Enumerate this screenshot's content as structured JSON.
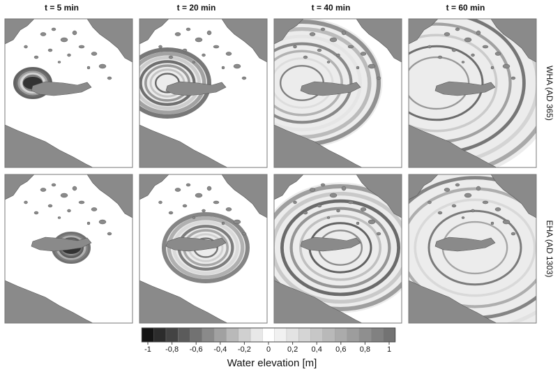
{
  "columns": [
    "t = 5 min",
    "t = 20 min",
    "t = 40 min",
    "t = 60 min"
  ],
  "rows": [
    "WHA (AD 365)",
    "EHA (AD 1303)"
  ],
  "colorbar": {
    "label": "Water elevation [m]",
    "lim": [
      -1,
      1
    ],
    "ticks": [
      -1,
      {
        "value": -0.8,
        "label": "-0,8"
      },
      {
        "value": -0.6,
        "label": "-0,6"
      },
      {
        "value": -0.4,
        "label": "-0,4"
      },
      {
        "value": -0.2,
        "label": "-0,2"
      },
      0,
      {
        "value": 0.2,
        "label": "0,2"
      },
      {
        "value": 0.4,
        "label": "0,4"
      },
      {
        "value": 0.6,
        "label": "0,6"
      },
      {
        "value": 0.8,
        "label": "0,8"
      },
      1
    ]
  }
}
